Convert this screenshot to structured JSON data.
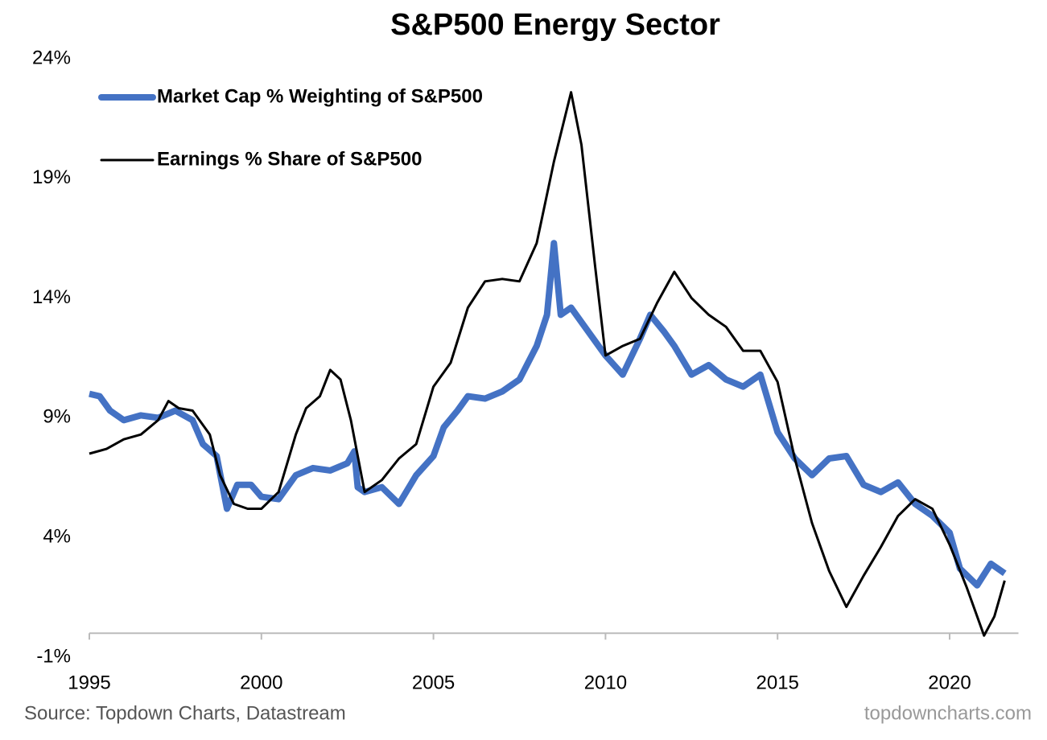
{
  "chart_data": {
    "type": "line",
    "title": "S&P500 Energy Sector",
    "source": "Source: Topdown Charts, Datastream",
    "watermark": "topdowncharts.com",
    "xlim": [
      1995,
      2022
    ],
    "xticks": [
      1995,
      2000,
      2005,
      2010,
      2015,
      2020
    ],
    "ylim": [
      -1,
      24
    ],
    "yticks": [
      {
        "value": -1,
        "label": "-1%"
      },
      {
        "value": 4,
        "label": "4%"
      },
      {
        "value": 9,
        "label": "9%"
      },
      {
        "value": 14,
        "label": "14%"
      },
      {
        "value": 19,
        "label": "19%"
      },
      {
        "value": 24,
        "label": "24%"
      }
    ],
    "legend": "upper left",
    "series": [
      {
        "name": "Market Cap % Weighting of S&P500",
        "color": "#4472c4",
        "width": 8,
        "x": [
          1995.0,
          1995.3,
          1995.6,
          1996.0,
          1996.5,
          1997.0,
          1997.5,
          1998.0,
          1998.3,
          1998.7,
          1999.0,
          1999.3,
          1999.7,
          2000.0,
          2000.5,
          2001.0,
          2001.5,
          2002.0,
          2002.5,
          2002.7,
          2002.8,
          2003.0,
          2003.5,
          2004.0,
          2004.5,
          2005.0,
          2005.3,
          2005.7,
          2006.0,
          2006.5,
          2007.0,
          2007.5,
          2008.0,
          2008.3,
          2008.5,
          2008.7,
          2009.0,
          2009.5,
          2010.0,
          2010.5,
          2011.0,
          2011.3,
          2011.7,
          2012.0,
          2012.5,
          2013.0,
          2013.5,
          2014.0,
          2014.5,
          2015.0,
          2015.5,
          2016.0,
          2016.5,
          2017.0,
          2017.5,
          2018.0,
          2018.5,
          2019.0,
          2019.5,
          2020.0,
          2020.3,
          2020.8,
          2021.2,
          2021.6
        ],
        "values": [
          10.0,
          9.9,
          9.3,
          8.9,
          9.1,
          9.0,
          9.3,
          8.9,
          7.9,
          7.4,
          5.2,
          6.2,
          6.2,
          5.7,
          5.6,
          6.6,
          6.9,
          6.8,
          7.1,
          7.6,
          6.1,
          5.9,
          6.1,
          5.4,
          6.6,
          7.4,
          8.6,
          9.3,
          9.9,
          9.8,
          10.1,
          10.6,
          12.0,
          13.3,
          16.3,
          13.3,
          13.6,
          12.6,
          11.6,
          10.8,
          12.3,
          13.3,
          12.6,
          12.0,
          10.8,
          11.2,
          10.6,
          10.3,
          10.8,
          8.4,
          7.3,
          6.6,
          7.3,
          7.4,
          6.2,
          5.9,
          6.3,
          5.4,
          4.9,
          4.2,
          2.7,
          2.0,
          2.9,
          2.5
        ]
      },
      {
        "name": "Earnings % Share of S&P500",
        "color": "#000000",
        "width": 3,
        "x": [
          1995.0,
          1995.5,
          1996.0,
          1996.5,
          1997.0,
          1997.3,
          1997.6,
          1998.0,
          1998.5,
          1998.8,
          1999.2,
          1999.6,
          2000.0,
          2000.5,
          2001.0,
          2001.3,
          2001.7,
          2002.0,
          2002.3,
          2002.6,
          2003.0,
          2003.5,
          2004.0,
          2004.5,
          2005.0,
          2005.5,
          2006.0,
          2006.5,
          2007.0,
          2007.5,
          2008.0,
          2008.5,
          2009.0,
          2009.3,
          2009.7,
          2010.0,
          2010.5,
          2011.0,
          2011.5,
          2012.0,
          2012.5,
          2013.0,
          2013.5,
          2014.0,
          2014.5,
          2015.0,
          2015.5,
          2016.0,
          2016.5,
          2017.0,
          2017.5,
          2018.0,
          2018.5,
          2019.0,
          2019.5,
          2020.0,
          2020.5,
          2021.0,
          2021.3,
          2021.6
        ],
        "values": [
          7.5,
          7.7,
          8.1,
          8.3,
          8.9,
          9.7,
          9.4,
          9.3,
          8.3,
          6.6,
          5.4,
          5.2,
          5.2,
          5.9,
          8.3,
          9.4,
          9.9,
          11.0,
          10.6,
          8.9,
          5.9,
          6.4,
          7.3,
          7.9,
          10.3,
          11.3,
          13.6,
          14.7,
          14.8,
          14.7,
          16.3,
          19.7,
          22.6,
          20.4,
          15.3,
          11.6,
          12.0,
          12.3,
          13.8,
          15.1,
          14.0,
          13.3,
          12.8,
          11.8,
          11.8,
          10.5,
          7.3,
          4.6,
          2.6,
          1.1,
          2.4,
          3.6,
          4.9,
          5.6,
          5.2,
          3.7,
          1.9,
          -0.1,
          0.7,
          2.2
        ]
      }
    ]
  }
}
